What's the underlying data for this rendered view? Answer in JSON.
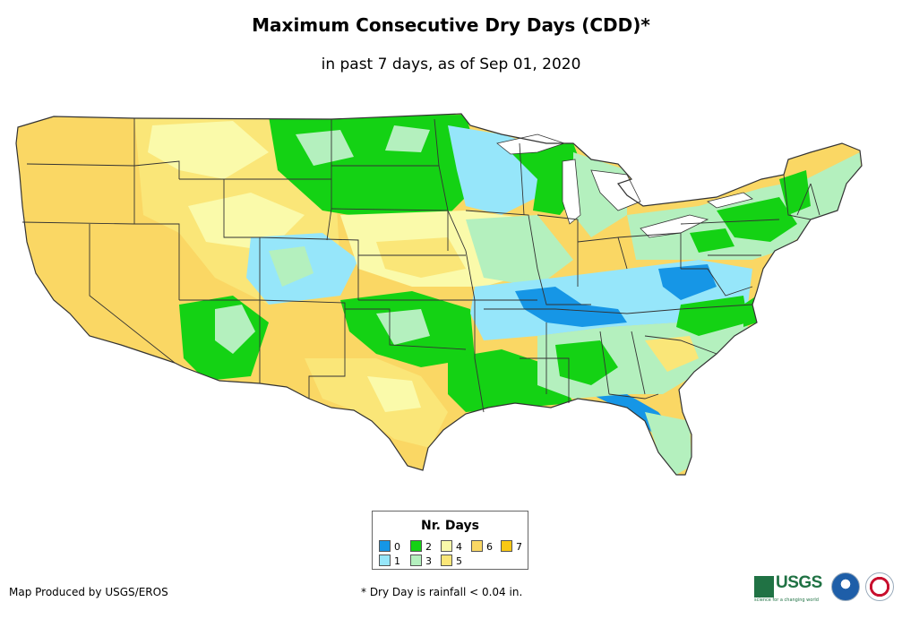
{
  "header": {
    "title": "Maximum Consecutive Dry Days (CDD)*",
    "subtitle": "in past 7 days, as of Sep 01, 2020"
  },
  "legend": {
    "title": "Nr. Days",
    "items": [
      {
        "label": "0",
        "color": "#1696e6"
      },
      {
        "label": "1",
        "color": "#96e6fa"
      },
      {
        "label": "2",
        "color": "#14d214"
      },
      {
        "label": "3",
        "color": "#b4f0be"
      },
      {
        "label": "4",
        "color": "#fafaaa"
      },
      {
        "label": "5",
        "color": "#fae678"
      },
      {
        "label": "6",
        "color": "#fad764"
      },
      {
        "label": "7",
        "color": "#fac814"
      }
    ]
  },
  "footer": {
    "credit": "Map Produced by USGS/EROS",
    "footnote": "* Dry Day is rainfall < 0.04 in."
  },
  "logos": {
    "usgs": "USGS",
    "usgs_tagline": "science for a changing world",
    "noaa": "noaa",
    "nws": "National Weather Service"
  },
  "map_colors": {
    "background": "#ffffff",
    "borders": "#333333",
    "water": "#ffffff"
  }
}
